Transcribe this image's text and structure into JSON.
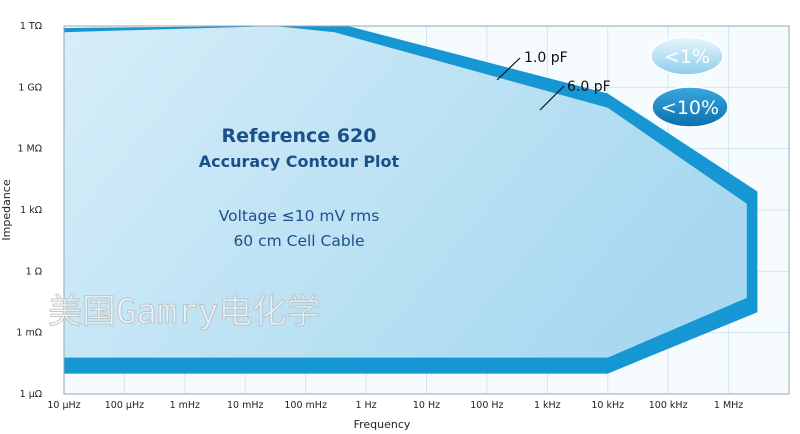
{
  "chart_data": {
    "type": "area",
    "title": "Reference 620",
    "subtitle": "Accuracy Contour Plot",
    "notes": [
      "Voltage ≤10 mV rms",
      "60 cm Cell Cable"
    ],
    "xlabel": "Frequency",
    "ylabel": "Impedance",
    "x_scale": "log",
    "y_scale": "log",
    "xlim": [
      1e-05,
      10000000
    ],
    "ylim": [
      1e-06,
      1000000000000
    ],
    "x_ticks": [
      "10 µHz",
      "100 µHz",
      "1 mHz",
      "10 mHz",
      "100 mHz",
      "1 Hz",
      "10 Hz",
      "100 Hz",
      "1 kHz",
      "10 kHz",
      "100 kHz",
      "1 MHz"
    ],
    "y_ticks": [
      "1 µΩ",
      "1 mΩ",
      "1 Ω",
      "1 kΩ",
      "1 MΩ",
      "1 GΩ",
      "1 TΩ"
    ],
    "grid": true,
    "regions": [
      {
        "name": "<1%",
        "color": "#bfe4f5",
        "points": [
          [
            1e-05,
            500000000000
          ],
          [
            0.03,
            1000000000000
          ],
          [
            0.3,
            500000000000
          ],
          [
            10000,
            100000000
          ],
          [
            2000000,
            2000
          ],
          [
            2000000,
            0.05
          ],
          [
            10000,
            6e-05
          ],
          [
            1e-05,
            6e-05
          ]
        ]
      },
      {
        "name": "<10%",
        "color": "#1796d4",
        "points": [
          [
            1e-05,
            800000000000
          ],
          [
            0.02,
            1000000000000
          ],
          [
            0.5,
            1000000000000
          ],
          [
            10000,
            500000000
          ],
          [
            3000000,
            8000
          ],
          [
            3000000,
            0.01
          ],
          [
            10000,
            1e-05
          ],
          [
            1e-05,
            1e-05
          ]
        ]
      }
    ],
    "capacitance_lines": [
      {
        "label": "1.0 pF",
        "annotation_at": [
          20000,
          5000000000000
        ]
      },
      {
        "label": "6.0 pF",
        "annotation_at": [
          50000,
          30000000000
        ]
      }
    ]
  },
  "watermark": "美国Gamry电化学"
}
